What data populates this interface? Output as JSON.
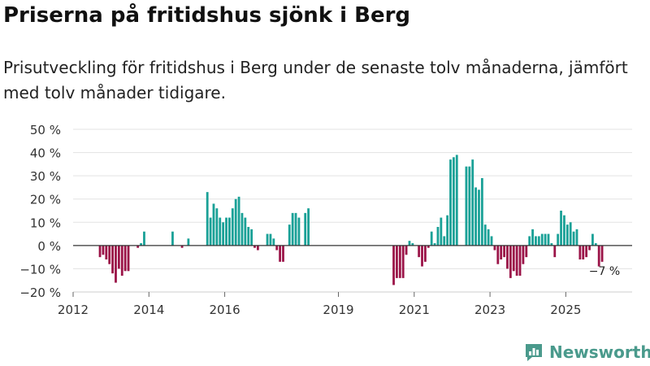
{
  "header": {
    "title": "Priserna på fritidshus sjönk i Berg",
    "subtitle": "Prisutveckling för fritidshus i Berg under de senaste tolv månaderna, jämfört med tolv månader tidigare."
  },
  "brand": {
    "name": "Newsworthy"
  },
  "colors": {
    "positive": "#1aa197",
    "negative": "#9b1448",
    "axis": "#333333",
    "grid": "#e3e3e3"
  },
  "chart_data": {
    "type": "bar",
    "title": "Priserna på fritidshus sjönk i Berg",
    "ylabel": "",
    "xlabel": "",
    "ylim": [
      -20,
      50
    ],
    "yticks": [
      -20,
      -10,
      0,
      10,
      20,
      30,
      40,
      50
    ],
    "ytick_labels": [
      "−20 %",
      "−10 %",
      "0 %",
      "10 %",
      "20 %",
      "30 %",
      "40 %",
      "50 %"
    ],
    "xlim": [
      2012.0,
      2026.75
    ],
    "xticks": [
      {
        "value": 2012.0,
        "label": "2012"
      },
      {
        "value": 2014.0,
        "label": "2014"
      },
      {
        "value": 2016.0,
        "label": "2016"
      },
      {
        "value": 2019.0,
        "label": "2019"
      },
      {
        "value": 2021.0,
        "label": "2021"
      },
      {
        "value": 2023.0,
        "label": "2023"
      },
      {
        "value": 2025.0,
        "label": "2025"
      }
    ],
    "grid": true,
    "last_value_label": "−7 %",
    "series": [
      {
        "name": "Prisutveckling",
        "points": [
          {
            "x": "2012-09",
            "value": -5
          },
          {
            "x": "2012-10",
            "value": -4
          },
          {
            "x": "2012-11",
            "value": -6
          },
          {
            "x": "2012-12",
            "value": -8
          },
          {
            "x": "2013-01",
            "value": -12
          },
          {
            "x": "2013-02",
            "value": -16
          },
          {
            "x": "2013-03",
            "value": -10
          },
          {
            "x": "2013-04",
            "value": -13
          },
          {
            "x": "2013-05",
            "value": -11
          },
          {
            "x": "2013-06",
            "value": -11
          },
          {
            "x": "2013-09",
            "value": -1
          },
          {
            "x": "2013-10",
            "value": 1
          },
          {
            "x": "2013-11",
            "value": 6
          },
          {
            "x": "2014-08",
            "value": 6
          },
          {
            "x": "2014-11",
            "value": -1
          },
          {
            "x": "2015-01",
            "value": 3
          },
          {
            "x": "2015-07",
            "value": 23
          },
          {
            "x": "2015-08",
            "value": 12
          },
          {
            "x": "2015-09",
            "value": 18
          },
          {
            "x": "2015-10",
            "value": 16
          },
          {
            "x": "2015-11",
            "value": 12
          },
          {
            "x": "2015-12",
            "value": 10
          },
          {
            "x": "2016-01",
            "value": 12
          },
          {
            "x": "2016-02",
            "value": 12
          },
          {
            "x": "2016-03",
            "value": 16
          },
          {
            "x": "2016-04",
            "value": 20
          },
          {
            "x": "2016-05",
            "value": 21
          },
          {
            "x": "2016-06",
            "value": 14
          },
          {
            "x": "2016-07",
            "value": 12
          },
          {
            "x": "2016-08",
            "value": 8
          },
          {
            "x": "2016-09",
            "value": 7
          },
          {
            "x": "2016-10",
            "value": -1
          },
          {
            "x": "2016-11",
            "value": -2
          },
          {
            "x": "2017-02",
            "value": 5
          },
          {
            "x": "2017-03",
            "value": 5
          },
          {
            "x": "2017-04",
            "value": 3
          },
          {
            "x": "2017-05",
            "value": -2
          },
          {
            "x": "2017-06",
            "value": -7
          },
          {
            "x": "2017-07",
            "value": -7
          },
          {
            "x": "2017-09",
            "value": 9
          },
          {
            "x": "2017-10",
            "value": 14
          },
          {
            "x": "2017-11",
            "value": 14
          },
          {
            "x": "2017-12",
            "value": 12
          },
          {
            "x": "2018-02",
            "value": 14
          },
          {
            "x": "2018-03",
            "value": 16
          },
          {
            "x": "2020-06",
            "value": -17
          },
          {
            "x": "2020-07",
            "value": -14
          },
          {
            "x": "2020-08",
            "value": -14
          },
          {
            "x": "2020-09",
            "value": -14
          },
          {
            "x": "2020-10",
            "value": -4
          },
          {
            "x": "2020-11",
            "value": 2
          },
          {
            "x": "2020-12",
            "value": 1
          },
          {
            "x": "2021-02",
            "value": -5
          },
          {
            "x": "2021-03",
            "value": -9
          },
          {
            "x": "2021-04",
            "value": -7
          },
          {
            "x": "2021-05",
            "value": -1
          },
          {
            "x": "2021-06",
            "value": 6
          },
          {
            "x": "2021-07",
            "value": 1
          },
          {
            "x": "2021-08",
            "value": 8
          },
          {
            "x": "2021-09",
            "value": 12
          },
          {
            "x": "2021-10",
            "value": 4
          },
          {
            "x": "2021-11",
            "value": 13
          },
          {
            "x": "2021-12",
            "value": 37
          },
          {
            "x": "2022-01",
            "value": 38
          },
          {
            "x": "2022-02",
            "value": 39
          },
          {
            "x": "2022-05",
            "value": 34
          },
          {
            "x": "2022-06",
            "value": 34
          },
          {
            "x": "2022-07",
            "value": 37
          },
          {
            "x": "2022-08",
            "value": 25
          },
          {
            "x": "2022-09",
            "value": 24
          },
          {
            "x": "2022-10",
            "value": 29
          },
          {
            "x": "2022-11",
            "value": 9
          },
          {
            "x": "2022-12",
            "value": 7
          },
          {
            "x": "2023-01",
            "value": 4
          },
          {
            "x": "2023-02",
            "value": -2
          },
          {
            "x": "2023-03",
            "value": -8
          },
          {
            "x": "2023-04",
            "value": -6
          },
          {
            "x": "2023-05",
            "value": -5
          },
          {
            "x": "2023-06",
            "value": -10
          },
          {
            "x": "2023-07",
            "value": -14
          },
          {
            "x": "2023-08",
            "value": -11
          },
          {
            "x": "2023-09",
            "value": -13
          },
          {
            "x": "2023-10",
            "value": -13
          },
          {
            "x": "2023-11",
            "value": -8
          },
          {
            "x": "2023-12",
            "value": -5
          },
          {
            "x": "2024-01",
            "value": 4
          },
          {
            "x": "2024-02",
            "value": 7
          },
          {
            "x": "2024-03",
            "value": 4
          },
          {
            "x": "2024-04",
            "value": 4
          },
          {
            "x": "2024-05",
            "value": 5
          },
          {
            "x": "2024-06",
            "value": 5
          },
          {
            "x": "2024-07",
            "value": 5
          },
          {
            "x": "2024-08",
            "value": 1
          },
          {
            "x": "2024-09",
            "value": -5
          },
          {
            "x": "2024-10",
            "value": 5
          },
          {
            "x": "2024-11",
            "value": 15
          },
          {
            "x": "2024-12",
            "value": 13
          },
          {
            "x": "2025-01",
            "value": 9
          },
          {
            "x": "2025-02",
            "value": 10
          },
          {
            "x": "2025-03",
            "value": 6
          },
          {
            "x": "2025-04",
            "value": 7
          },
          {
            "x": "2025-05",
            "value": -6
          },
          {
            "x": "2025-06",
            "value": -6
          },
          {
            "x": "2025-07",
            "value": -5
          },
          {
            "x": "2025-08",
            "value": -2
          },
          {
            "x": "2025-09",
            "value": 5
          },
          {
            "x": "2025-10",
            "value": 1
          },
          {
            "x": "2025-11",
            "value": -9
          },
          {
            "x": "2025-12",
            "value": -7
          }
        ]
      }
    ]
  }
}
